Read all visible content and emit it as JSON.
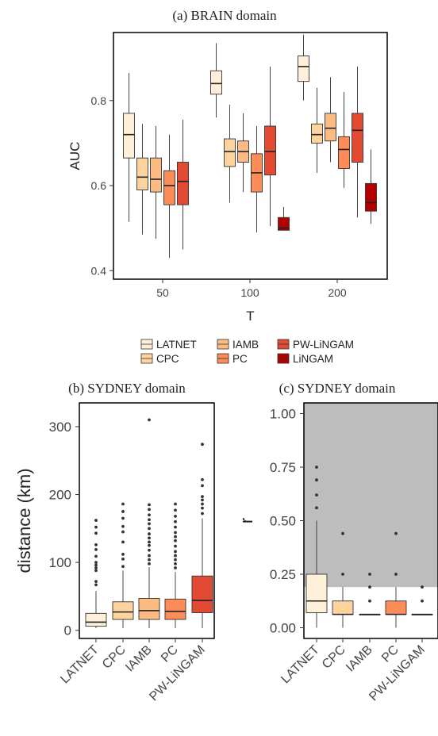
{
  "colors": {
    "LATNET": "#fef0d9",
    "CPC": "#fdd49e",
    "IAMB": "#fdbb84",
    "PC": "#fc8d59",
    "PW-LiNGAM": "#e34a33",
    "LiNGAM": "#b30000",
    "shade": "#bdbdbd"
  },
  "chart_data": [
    {
      "id": "brain",
      "type": "box",
      "title": "(a) BRAIN domain",
      "xlabel": "T",
      "ylabel": "AUC",
      "ylim": [
        0.38,
        0.96
      ],
      "yticks": [
        "0.4",
        "0.6",
        "0.8"
      ],
      "yticks_values": [
        0.4,
        0.6,
        0.8
      ],
      "categories": [
        "50",
        "100",
        "200"
      ],
      "legend": {
        "placement": "bottom",
        "entries": [
          "LATNET",
          "CPC",
          "IAMB",
          "PC",
          "PW-LiNGAM",
          "LiNGAM"
        ]
      },
      "series": [
        {
          "name": "LATNET",
          "boxes": [
            {
              "min": 0.515,
              "q1": 0.665,
              "median": 0.72,
              "q3": 0.77,
              "max": 0.865
            },
            {
              "min": 0.76,
              "q1": 0.815,
              "median": 0.84,
              "q3": 0.87,
              "max": 0.935
            },
            {
              "min": 0.8,
              "q1": 0.845,
              "median": 0.88,
              "q3": 0.905,
              "max": 0.955
            }
          ]
        },
        {
          "name": "CPC",
          "boxes": [
            {
              "min": 0.485,
              "q1": 0.59,
              "median": 0.62,
              "q3": 0.665,
              "max": 0.745
            },
            {
              "min": 0.56,
              "q1": 0.645,
              "median": 0.68,
              "q3": 0.71,
              "max": 0.79
            },
            {
              "min": 0.63,
              "q1": 0.7,
              "median": 0.72,
              "q3": 0.745,
              "max": 0.83
            }
          ]
        },
        {
          "name": "IAMB",
          "boxes": [
            {
              "min": 0.475,
              "q1": 0.585,
              "median": 0.615,
              "q3": 0.665,
              "max": 0.74
            },
            {
              "min": 0.585,
              "q1": 0.655,
              "median": 0.68,
              "q3": 0.705,
              "max": 0.77
            },
            {
              "min": 0.655,
              "q1": 0.705,
              "median": 0.735,
              "q3": 0.77,
              "max": 0.855
            }
          ]
        },
        {
          "name": "PC",
          "boxes": [
            {
              "min": 0.43,
              "q1": 0.555,
              "median": 0.6,
              "q3": 0.635,
              "max": 0.72
            },
            {
              "min": 0.49,
              "q1": 0.585,
              "median": 0.63,
              "q3": 0.675,
              "max": 0.74
            },
            {
              "min": 0.595,
              "q1": 0.64,
              "median": 0.685,
              "q3": 0.715,
              "max": 0.82
            }
          ]
        },
        {
          "name": "PW-LiNGAM",
          "boxes": [
            {
              "min": 0.45,
              "q1": 0.555,
              "median": 0.61,
              "q3": 0.655,
              "max": 0.755
            },
            {
              "min": 0.505,
              "q1": 0.625,
              "median": 0.68,
              "q3": 0.74,
              "max": 0.88
            },
            {
              "min": 0.525,
              "q1": 0.655,
              "median": 0.73,
              "q3": 0.77,
              "max": 0.88
            }
          ]
        },
        {
          "name": "LiNGAM",
          "boxes": [
            null,
            {
              "min": 0.495,
              "q1": 0.495,
              "median": 0.5,
              "q3": 0.525,
              "max": 0.55
            },
            {
              "min": 0.51,
              "q1": 0.54,
              "median": 0.56,
              "q3": 0.605,
              "max": 0.685
            }
          ]
        }
      ]
    },
    {
      "id": "sydney_distance",
      "type": "box",
      "title": "(b) SYDNEY domain",
      "xlabel": "",
      "ylabel": "distance (km)",
      "ylim": [
        -12,
        335
      ],
      "yticks": [
        "0",
        "100",
        "200",
        "300"
      ],
      "yticks_values": [
        0,
        100,
        200,
        300
      ],
      "categories": [
        "LATNET",
        "CPC",
        "IAMB",
        "PC",
        "PW-LiNGAM"
      ],
      "boxes": [
        {
          "min": 3,
          "q1": 6,
          "median": 12,
          "q3": 25,
          "max": 58,
          "outliers": [
            67,
            72,
            88,
            92,
            96,
            100,
            109,
            119,
            126,
            143,
            152,
            162
          ]
        },
        {
          "min": 3,
          "q1": 16,
          "median": 27,
          "q3": 42,
          "max": 88,
          "outliers": [
            94,
            105,
            112,
            130,
            145,
            153,
            165,
            175,
            186
          ]
        },
        {
          "min": 3,
          "q1": 16,
          "median": 29,
          "q3": 47,
          "max": 93,
          "outliers": [
            98,
            104,
            110,
            118,
            125,
            130,
            136,
            142,
            150,
            157,
            163,
            170,
            178,
            185,
            310
          ]
        },
        {
          "min": 3,
          "q1": 16,
          "median": 28,
          "q3": 46,
          "max": 86,
          "outliers": [
            92,
            98,
            104,
            110,
            116,
            124,
            132,
            138,
            144,
            152,
            160,
            168,
            177,
            186
          ]
        },
        {
          "min": 3,
          "q1": 26,
          "median": 44,
          "q3": 80,
          "max": 165,
          "outliers": [
            172,
            180,
            186,
            192,
            197,
            213,
            222,
            274
          ]
        }
      ]
    },
    {
      "id": "sydney_r",
      "type": "box",
      "title": "(c) SYDNEY domain",
      "xlabel": "",
      "ylabel": "r",
      "ylim": [
        -0.05,
        1.05
      ],
      "yticks": [
        "0.00",
        "0.25",
        "0.50",
        "0.75",
        "1.00"
      ],
      "yticks_values": [
        0,
        0.25,
        0.5,
        0.75,
        1.0
      ],
      "shade_from": 0.19,
      "categories": [
        "LATNET",
        "CPC",
        "IAMB",
        "PC",
        "PW-LiNGAM"
      ],
      "boxes": [
        {
          "min": 0.0,
          "q1": 0.07,
          "median": 0.125,
          "q3": 0.25,
          "max": 0.5,
          "outliers": [
            0.56,
            0.62,
            0.69,
            0.75
          ]
        },
        {
          "min": 0.0,
          "q1": 0.0625,
          "median": 0.0625,
          "q3": 0.125,
          "max": 0.19,
          "outliers": [
            0.25,
            0.44
          ]
        },
        {
          "min": 0.0625,
          "q1": 0.0625,
          "median": 0.0625,
          "q3": 0.0625,
          "max": 0.0625,
          "outliers": [
            0.125,
            0.19,
            0.25
          ]
        },
        {
          "min": 0.0,
          "q1": 0.0625,
          "median": 0.0625,
          "q3": 0.125,
          "max": 0.19,
          "outliers": [
            0.25,
            0.44
          ]
        },
        {
          "min": 0.0625,
          "q1": 0.0625,
          "median": 0.0625,
          "q3": 0.0625,
          "max": 0.0625,
          "outliers": [
            0.125,
            0.19
          ]
        }
      ]
    }
  ]
}
